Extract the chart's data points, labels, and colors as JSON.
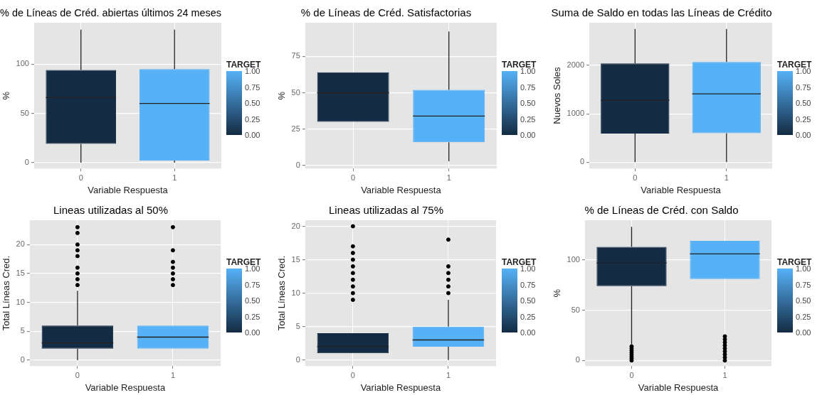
{
  "chart_data": [
    {
      "type": "box",
      "title": "% de Líneas de Créd. abiertas últimos 24 meses",
      "xlabel": "Variable Respuesta",
      "ylabel": "%",
      "categories": [
        "0",
        "1"
      ],
      "colors": [
        "#132b43",
        "#56b1f7"
      ],
      "ylim": [
        -6,
        142
      ],
      "yticks": [
        0,
        50,
        100
      ],
      "grid": true,
      "clabel": "TARGET",
      "clim": [
        0,
        1
      ],
      "cticks": [
        {
          "value": 0,
          "label": "0.00"
        },
        {
          "value": 0.25,
          "label": "0.25"
        },
        {
          "value": 0.5,
          "label": "0.50"
        },
        {
          "value": 0.75,
          "label": "0.75"
        },
        {
          "value": 1,
          "label": "1.00"
        }
      ],
      "boxes": [
        {
          "low": 0,
          "q1": 19,
          "median": 66,
          "q3": 94,
          "high": 135
        },
        {
          "low": 0,
          "q1": 2,
          "median": 60,
          "q3": 95,
          "high": 135
        }
      ]
    },
    {
      "type": "box",
      "title": "% de Líneas de Créd. Satisfactorias",
      "xlabel": "Variable Respuesta",
      "ylabel": "%",
      "categories": [
        "0",
        "1"
      ],
      "colors": [
        "#132b43",
        "#56b1f7"
      ],
      "ylim": [
        -2,
        98
      ],
      "yticks": [
        0,
        25,
        50,
        75
      ],
      "grid": true,
      "clabel": "TARGET",
      "clim": [
        0,
        1
      ],
      "cticks": [
        {
          "value": 0,
          "label": "0.00"
        },
        {
          "value": 0.25,
          "label": "0.25"
        },
        {
          "value": 0.5,
          "label": "0.50"
        },
        {
          "value": 0.75,
          "label": "0.75"
        },
        {
          "value": 1,
          "label": "1.00"
        }
      ],
      "boxes": [
        {
          "low": 30,
          "q1": 30,
          "median": 50,
          "q3": 64,
          "high": 64
        },
        {
          "low": 3,
          "q1": 16,
          "median": 34,
          "q3": 52,
          "high": 92
        }
      ]
    },
    {
      "type": "box",
      "title": "Suma de Saldo en todas las Líneas de Crédito",
      "xlabel": "Variable Respuesta",
      "ylabel": "Nuevos Soles",
      "categories": [
        "0",
        "1"
      ],
      "colors": [
        "#132b43",
        "#56b1f7"
      ],
      "ylim": [
        -130,
        2880
      ],
      "yticks": [
        0,
        1000,
        2000
      ],
      "grid": true,
      "clabel": "TARGET",
      "clim": [
        0,
        1
      ],
      "cticks": [
        {
          "value": 0,
          "label": "0.00"
        },
        {
          "value": 0.25,
          "label": "0.25"
        },
        {
          "value": 0.5,
          "label": "0.50"
        },
        {
          "value": 0.75,
          "label": "0.75"
        },
        {
          "value": 1,
          "label": "1.00"
        }
      ],
      "boxes": [
        {
          "low": 0,
          "q1": 590,
          "median": 1280,
          "q3": 2040,
          "high": 2750
        },
        {
          "low": 0,
          "q1": 600,
          "median": 1410,
          "q3": 2070,
          "high": 2750
        }
      ]
    },
    {
      "type": "box",
      "title": "Lineas utilizadas al 50%",
      "xlabel": "Variable Respuesta",
      "ylabel": "Total Líneas Cred.",
      "categories": [
        "0",
        "1"
      ],
      "colors": [
        "#132b43",
        "#56b1f7"
      ],
      "ylim": [
        -1,
        24.2
      ],
      "yticks": [
        0,
        5,
        10,
        15,
        20
      ],
      "grid": true,
      "clabel": "TARGET",
      "clim": [
        0,
        1
      ],
      "cticks": [
        {
          "value": 0,
          "label": "0.00"
        },
        {
          "value": 0.25,
          "label": "0.25"
        },
        {
          "value": 0.5,
          "label": "0.50"
        },
        {
          "value": 0.75,
          "label": "0.75"
        },
        {
          "value": 1,
          "label": "1.00"
        }
      ],
      "boxes": [
        {
          "low": 0,
          "q1": 2,
          "median": 3,
          "q3": 6,
          "high": 12,
          "outliers": [
            13,
            14,
            15,
            16,
            18,
            19,
            20,
            22,
            23
          ]
        },
        {
          "low": 2,
          "q1": 2,
          "median": 4,
          "q3": 6,
          "high": 6,
          "outliers": [
            13,
            14,
            15,
            16,
            17,
            19,
            23
          ]
        }
      ]
    },
    {
      "type": "box",
      "title": "Lineas utilizadas al 75%",
      "xlabel": "Variable Respuesta",
      "ylabel": "Total Líneas Cred.",
      "categories": [
        "0",
        "1"
      ],
      "colors": [
        "#132b43",
        "#56b1f7"
      ],
      "ylim": [
        -0.9,
        20.9
      ],
      "yticks": [
        0,
        5,
        10,
        15,
        20
      ],
      "grid": true,
      "clabel": "TARGET",
      "clim": [
        0,
        1
      ],
      "cticks": [
        {
          "value": 0,
          "label": "0.00"
        },
        {
          "value": 0.25,
          "label": "0.25"
        },
        {
          "value": 0.5,
          "label": "0.50"
        },
        {
          "value": 0.75,
          "label": "0.75"
        },
        {
          "value": 1,
          "label": "1.00"
        }
      ],
      "boxes": [
        {
          "low": 1,
          "q1": 1,
          "median": 2,
          "q3": 4,
          "high": 4,
          "outliers": [
            9,
            10,
            11,
            12,
            13,
            14,
            15,
            16,
            17,
            20
          ]
        },
        {
          "low": 0,
          "q1": 2,
          "median": 3,
          "q3": 5,
          "high": 9,
          "outliers": [
            10,
            11,
            12,
            13,
            14,
            18
          ]
        }
      ]
    },
    {
      "type": "box",
      "title": "% de Líneas de Créd. con Saldo",
      "xlabel": "Variable Respuesta",
      "ylabel": "%",
      "categories": [
        "0",
        "1"
      ],
      "colors": [
        "#132b43",
        "#56b1f7"
      ],
      "ylim": [
        -5.5,
        139.5
      ],
      "yticks": [
        0,
        50,
        100
      ],
      "grid": true,
      "clabel": "TARGET",
      "clim": [
        0,
        1
      ],
      "cticks": [
        {
          "value": 0,
          "label": "0.00"
        },
        {
          "value": 0.25,
          "label": "0.25"
        },
        {
          "value": 0.5,
          "label": "0.50"
        },
        {
          "value": 0.75,
          "label": "0.75"
        },
        {
          "value": 1,
          "label": "1.00"
        }
      ],
      "boxes": [
        {
          "low": 16,
          "q1": 74,
          "median": 97,
          "q3": 113,
          "high": 133,
          "outliers": [
            0,
            2,
            4,
            6,
            8,
            10,
            12,
            14
          ]
        },
        {
          "low": 81,
          "q1": 81,
          "median": 106,
          "q3": 119,
          "high": 119,
          "outliers": [
            0,
            3,
            6,
            9,
            12,
            15,
            18,
            21,
            24
          ]
        }
      ]
    }
  ]
}
